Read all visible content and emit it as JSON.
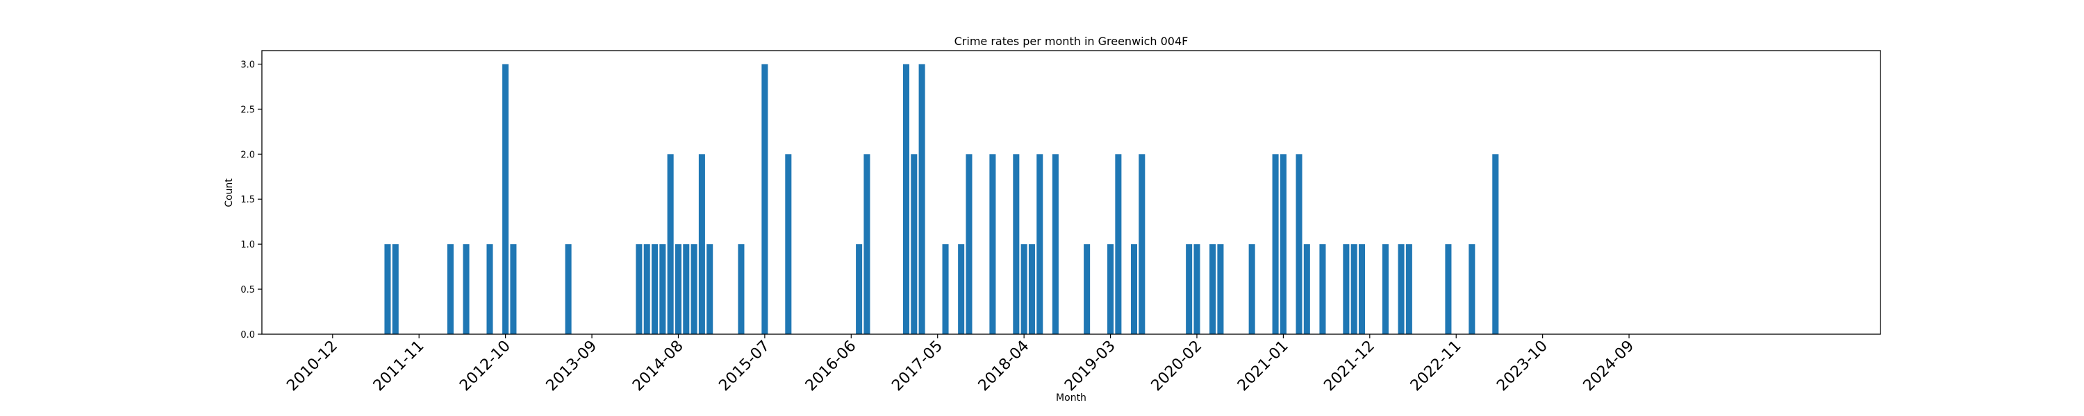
{
  "chart_data": {
    "type": "bar",
    "title": "Crime rates per month in Greenwich 004F",
    "xlabel": "Month",
    "ylabel": "Count",
    "ylim": [
      0,
      3.15
    ],
    "yticks": [
      "0.0",
      "0.5",
      "1.0",
      "1.5",
      "2.0",
      "2.5",
      "3.0"
    ],
    "xticks": [
      "2010-12",
      "2011-11",
      "2012-10",
      "2013-09",
      "2014-08",
      "2015-07",
      "2016-06",
      "2017-05",
      "2018-04",
      "2019-03",
      "2020-02",
      "2021-01",
      "2021-12",
      "2022-11",
      "2023-10",
      "2024-09"
    ],
    "xlim": [
      "2010-03",
      "2027-05"
    ],
    "grid": false,
    "color": "#1f77b4",
    "categories": [
      "2011-07",
      "2011-08",
      "2012-03",
      "2012-05",
      "2012-08",
      "2012-10",
      "2012-11",
      "2013-06",
      "2014-03",
      "2014-04",
      "2014-05",
      "2014-06",
      "2014-07",
      "2014-08",
      "2014-09",
      "2014-10",
      "2014-11",
      "2014-12",
      "2015-04",
      "2015-07",
      "2015-10",
      "2016-07",
      "2016-08",
      "2017-01",
      "2017-02",
      "2017-03",
      "2017-06",
      "2017-08",
      "2017-09",
      "2017-12",
      "2018-03",
      "2018-04",
      "2018-05",
      "2018-06",
      "2018-08",
      "2018-12",
      "2019-03",
      "2019-04",
      "2019-06",
      "2019-07",
      "2020-01",
      "2020-02",
      "2020-04",
      "2020-05",
      "2020-09",
      "2020-12",
      "2021-01",
      "2021-03",
      "2021-04",
      "2021-06",
      "2021-09",
      "2021-10",
      "2021-11",
      "2022-02",
      "2022-04",
      "2022-05",
      "2022-10",
      "2023-01",
      "2023-04"
    ],
    "values": [
      1,
      1,
      1,
      1,
      1,
      3,
      1,
      1,
      1,
      1,
      1,
      1,
      2,
      1,
      1,
      1,
      2,
      1,
      1,
      3,
      2,
      1,
      2,
      3,
      2,
      3,
      1,
      1,
      2,
      2,
      2,
      1,
      1,
      2,
      2,
      1,
      1,
      2,
      1,
      2,
      1,
      1,
      1,
      1,
      1,
      2,
      2,
      2,
      1,
      1,
      1,
      1,
      1,
      1,
      1,
      1,
      1,
      1,
      2
    ]
  }
}
